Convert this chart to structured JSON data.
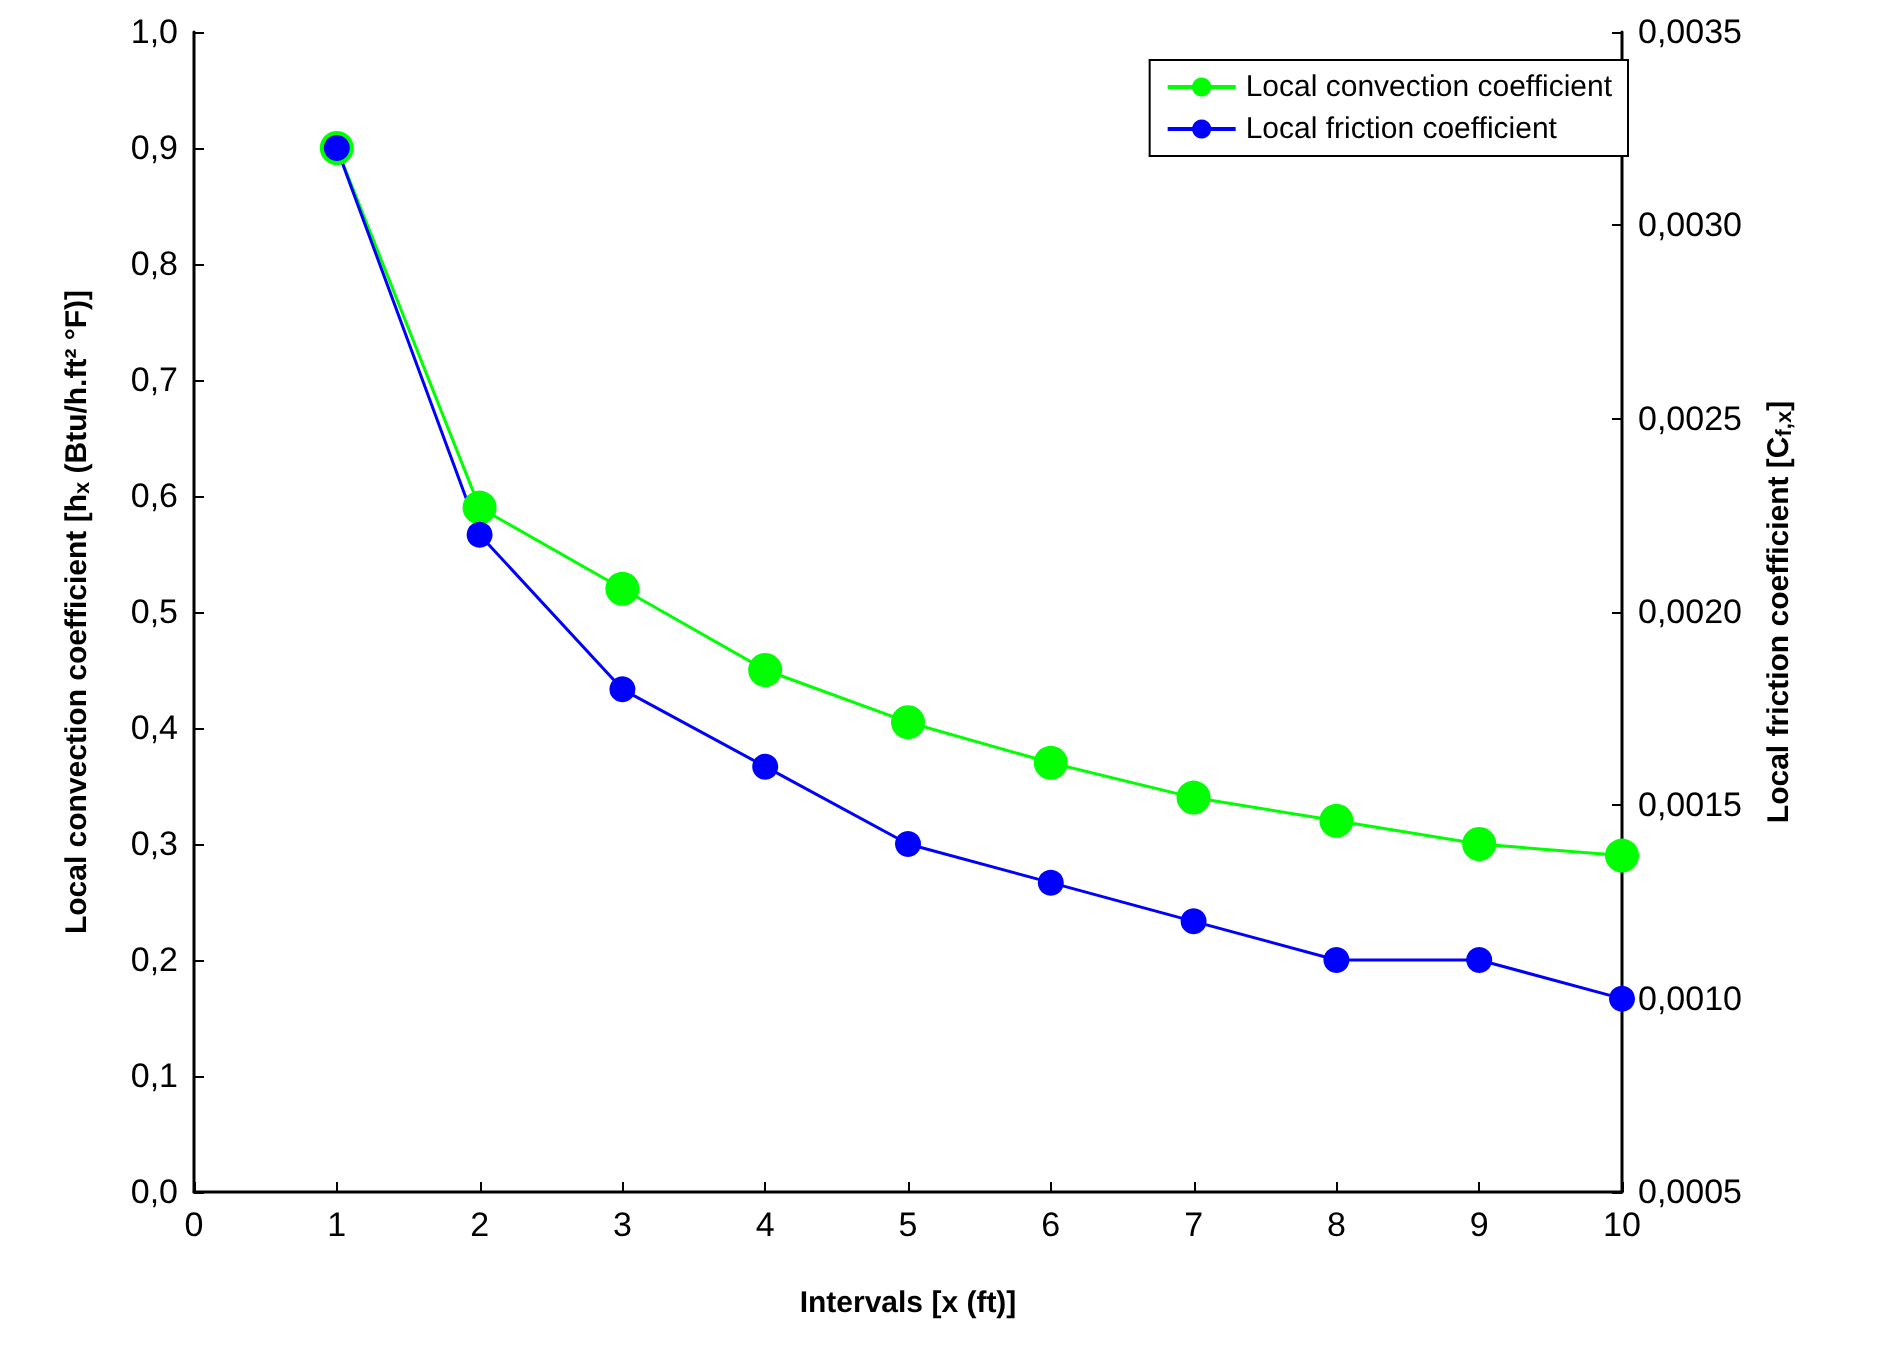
{
  "chart_data": {
    "type": "line",
    "xlabel": "Intervals [x (ft)]",
    "ylabel": "Local convection coefficient [h$_{x}$ (Btu/h.ft² °F)]",
    "y2label": "Local friction coefficient [C$_{f,x}$]",
    "x": [
      1,
      2,
      3,
      4,
      5,
      6,
      7,
      8,
      9,
      10
    ],
    "series": [
      {
        "name": "Local convection coefficient",
        "color": "#00ff00",
        "values": [
          0.9,
          0.59,
          0.52,
          0.45,
          0.405,
          0.37,
          0.34,
          0.32,
          0.3,
          0.29
        ]
      },
      {
        "name": "Local friction coefficient",
        "color": "#0000ff",
        "axis": "y2",
        "values": [
          0.0032,
          0.0022,
          0.0018,
          0.0016,
          0.0014,
          0.0013,
          0.0012,
          0.0011,
          0.0011,
          0.001
        ]
      }
    ],
    "xlim": [
      0,
      10
    ],
    "xticks": [
      0,
      1,
      2,
      3,
      4,
      5,
      6,
      7,
      8,
      9,
      10
    ],
    "ylim": [
      0,
      1
    ],
    "yticks": [
      {
        "value": 0,
        "label": "0,0"
      },
      {
        "value": 0.1,
        "label": "0,1"
      },
      {
        "value": 0.2,
        "label": "0,2"
      },
      {
        "value": 0.3,
        "label": "0,3"
      },
      {
        "value": 0.4,
        "label": "0,4"
      },
      {
        "value": 0.5,
        "label": "0,5"
      },
      {
        "value": 0.6,
        "label": "0,6"
      },
      {
        "value": 0.7,
        "label": "0,7"
      },
      {
        "value": 0.8,
        "label": "0,8"
      },
      {
        "value": 0.9,
        "label": "0,9"
      },
      {
        "value": 1,
        "label": "1,0"
      }
    ],
    "y2lim": [
      0.0005,
      0.0035
    ],
    "y2ticks": [
      {
        "value": 0.0005,
        "label": "0,0005"
      },
      {
        "value": 0.001,
        "label": "0,0010"
      },
      {
        "value": 0.0015,
        "label": "0,0015"
      },
      {
        "value": 0.002,
        "label": "0,0020"
      },
      {
        "value": 0.0025,
        "label": "0,0025"
      },
      {
        "value": 0.003,
        "label": "0,0030"
      },
      {
        "value": 0.0035,
        "label": "0,0035"
      }
    ],
    "grid": false,
    "legend": "top right",
    "marker": "circle",
    "line_style": "solid"
  }
}
